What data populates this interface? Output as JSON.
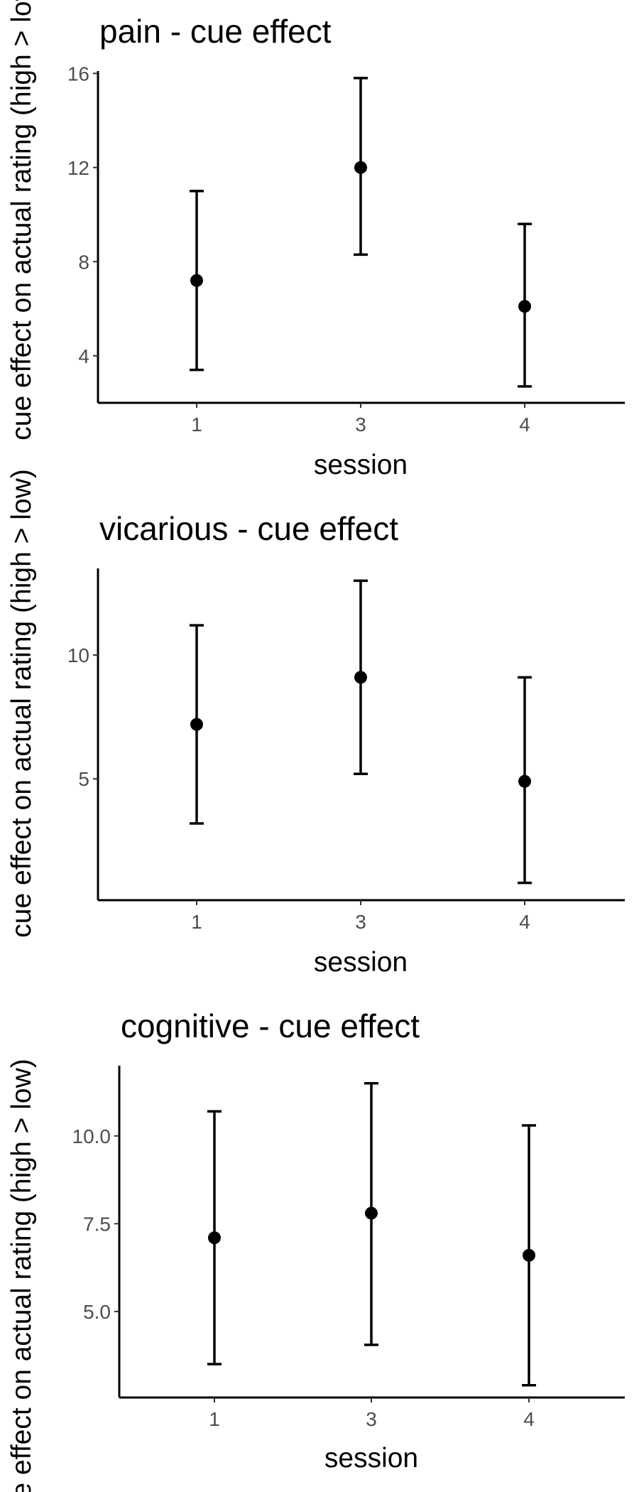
{
  "chart_data": [
    {
      "type": "errorbar",
      "title": "pain - cue effect",
      "xlabel": "session",
      "ylabel": "cue effect on actual rating (high > low)",
      "categories": [
        "1",
        "3",
        "4"
      ],
      "series": [
        {
          "values": [
            7.2,
            12.0,
            6.1
          ],
          "lower": [
            3.4,
            8.3,
            2.7
          ],
          "upper": [
            11.0,
            15.8,
            9.6
          ]
        }
      ],
      "yticks": [
        4,
        8,
        12,
        16
      ],
      "ytick_labels": [
        "4",
        "8",
        "12",
        "16"
      ],
      "ylim": [
        2.0,
        16.1
      ],
      "grid": false
    },
    {
      "type": "errorbar",
      "title": "vicarious - cue effect",
      "xlabel": "session",
      "ylabel": "cue effect on actual rating (high > low)",
      "categories": [
        "1",
        "3",
        "4"
      ],
      "series": [
        {
          "values": [
            7.2,
            9.1,
            4.9
          ],
          "lower": [
            3.2,
            5.2,
            0.8
          ],
          "upper": [
            11.2,
            13.0,
            9.1
          ]
        }
      ],
      "yticks": [
        5,
        10
      ],
      "ytick_labels": [
        "5",
        "10"
      ],
      "ylim": [
        0.1,
        13.5
      ],
      "grid": false
    },
    {
      "type": "errorbar",
      "title": "cognitive - cue effect",
      "xlabel": "session",
      "ylabel": "cue effect on actual rating (high > low)",
      "categories": [
        "1",
        "3",
        "4"
      ],
      "series": [
        {
          "values": [
            7.1,
            7.8,
            6.6
          ],
          "lower": [
            3.5,
            4.05,
            2.9
          ],
          "upper": [
            10.7,
            11.5,
            10.3
          ]
        }
      ],
      "yticks": [
        5.0,
        7.5,
        10.0
      ],
      "ytick_labels": [
        "5.0",
        "7.5",
        "10.0"
      ],
      "ylim": [
        2.55,
        12.0
      ],
      "grid": false
    }
  ]
}
